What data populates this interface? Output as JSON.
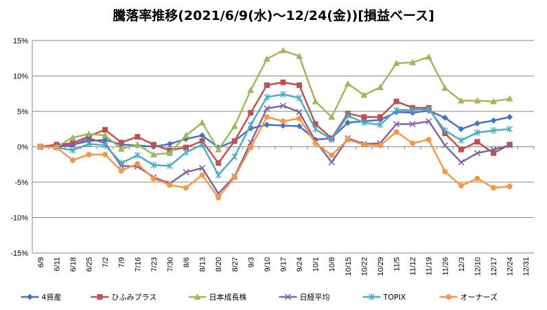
{
  "chart_data": {
    "type": "line",
    "title": "騰落率推移(2021/6/9(水)～12/24(金))[損益ベース]",
    "xlabel": "",
    "ylabel": "",
    "ylim": [
      -15,
      15
    ],
    "y_ticks": [
      "15%",
      "10%",
      "5%",
      "0%",
      "-5%",
      "-10%",
      "-15%"
    ],
    "grid": true,
    "legend_position": "bottom",
    "categories": [
      "6/9",
      "6/11",
      "6/18",
      "6/25",
      "7/2",
      "7/9",
      "7/16",
      "7/23",
      "7/30",
      "8/6",
      "8/13",
      "8/20",
      "8/27",
      "9/3",
      "9/10",
      "9/17",
      "9/24",
      "10/1",
      "10/8",
      "10/15",
      "10/22",
      "10/29",
      "11/5",
      "11/12",
      "11/19",
      "11/26",
      "12/3",
      "12/10",
      "12/17",
      "12/24",
      "12/31"
    ],
    "series": [
      {
        "name": "4資産",
        "color": "#4472C4",
        "marker": "diamond",
        "values": [
          0,
          0.1,
          0.3,
          0.8,
          1.0,
          0.3,
          0.2,
          0.0,
          0.4,
          1.1,
          1.6,
          -0.1,
          0.8,
          2.6,
          3.1,
          3.0,
          2.9,
          1.0,
          1.2,
          3.4,
          3.6,
          3.8,
          4.9,
          4.8,
          5.1,
          4.1,
          2.5,
          3.3,
          3.7,
          4.2,
          null
        ]
      },
      {
        "name": "ひふみプラス",
        "color": "#C0504D",
        "marker": "square",
        "values": [
          0,
          0.3,
          0.5,
          1.5,
          2.4,
          0.6,
          1.4,
          0.3,
          -0.5,
          -0.1,
          0.8,
          -2.3,
          0.8,
          4.8,
          8.7,
          9.1,
          8.7,
          3.2,
          1.2,
          4.7,
          4.2,
          4.2,
          6.4,
          5.5,
          5.5,
          1.9,
          -0.4,
          0.7,
          -0.9,
          0.3,
          null
        ]
      },
      {
        "name": "日本成長株",
        "color": "#9BBB59",
        "marker": "triangle",
        "values": [
          0,
          0.0,
          1.3,
          1.8,
          1.6,
          -0.3,
          0.3,
          -1.1,
          -0.9,
          1.6,
          3.4,
          -0.4,
          2.9,
          8.0,
          12.4,
          13.6,
          12.8,
          6.4,
          4.2,
          8.9,
          7.3,
          8.4,
          11.8,
          11.9,
          12.7,
          8.3,
          6.5,
          6.5,
          6.4,
          6.8,
          null
        ]
      },
      {
        "name": "日経平均",
        "color": "#8064A2",
        "marker": "x",
        "values": [
          0,
          0.0,
          0.2,
          1.2,
          0.5,
          -2.7,
          -2.8,
          -4.3,
          -5.2,
          -3.6,
          -3.0,
          -6.6,
          -4.2,
          0.6,
          5.4,
          5.8,
          4.9,
          0.8,
          -2.2,
          1.2,
          0.4,
          0.5,
          3.2,
          3.2,
          3.6,
          0.2,
          -2.2,
          -0.9,
          -0.4,
          0.2,
          null
        ]
      },
      {
        "name": "TOPIX",
        "color": "#4BACC6",
        "marker": "asterisk",
        "values": [
          0,
          -0.1,
          -0.5,
          0.4,
          0.2,
          -2.3,
          -1.2,
          -2.6,
          -2.7,
          -0.8,
          0.3,
          -4.0,
          -1.4,
          3.1,
          7.0,
          7.4,
          6.9,
          2.5,
          1.0,
          4.4,
          3.4,
          3.1,
          5.2,
          5.2,
          5.3,
          2.3,
          0.9,
          2.0,
          2.3,
          2.5,
          null
        ]
      },
      {
        "name": "オーナーズ",
        "color": "#F79646",
        "marker": "circle",
        "values": [
          0,
          -0.1,
          -1.9,
          -1.1,
          -1.1,
          -3.4,
          -2.4,
          -4.5,
          -5.4,
          -5.8,
          -4.0,
          -7.2,
          -4.3,
          -0.1,
          4.2,
          3.6,
          4.0,
          0.5,
          -1.2,
          1.0,
          0.3,
          0.2,
          2.1,
          0.5,
          1.0,
          -3.5,
          -5.5,
          -4.5,
          -5.8,
          -5.6,
          null
        ]
      }
    ]
  }
}
